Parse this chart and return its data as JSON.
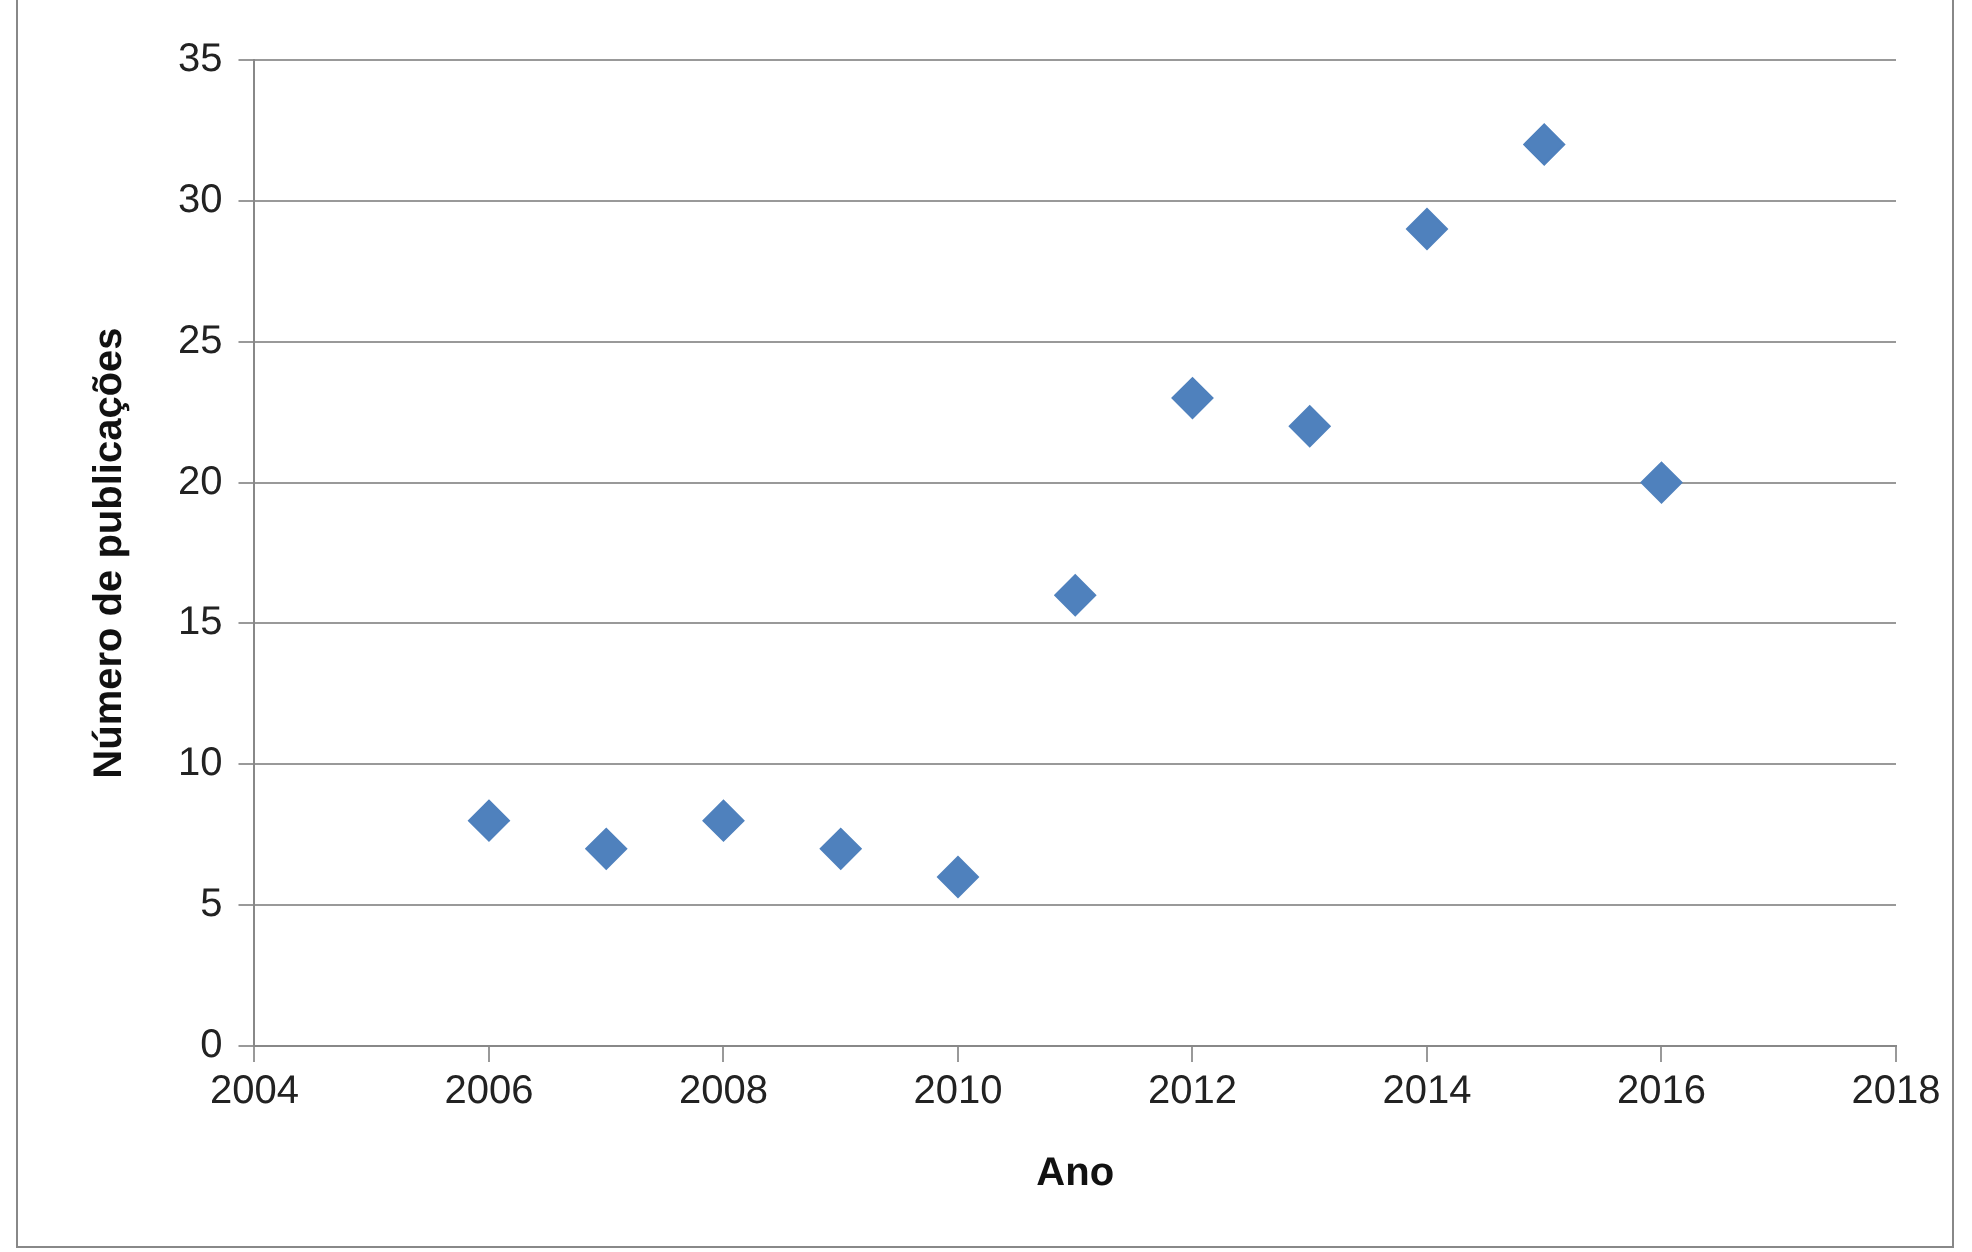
{
  "chart_data": {
    "type": "scatter",
    "xlabel": "Ano",
    "ylabel": "Número de publicações",
    "x": [
      2006,
      2007,
      2008,
      2009,
      2010,
      2011,
      2012,
      2013,
      2014,
      2015,
      2016
    ],
    "values": [
      8,
      7,
      8,
      7,
      6,
      16,
      23,
      22,
      29,
      32,
      20
    ],
    "color": "#4f81bd",
    "marker": "diamond",
    "xlim": [
      2004,
      2018
    ],
    "xticks": [
      2004,
      2006,
      2008,
      2010,
      2012,
      2014,
      2016,
      2018
    ],
    "ylim": [
      0,
      35
    ],
    "yticks": [
      0,
      5,
      10,
      15,
      20,
      25,
      30,
      35
    ],
    "grid": "y",
    "legend": false
  }
}
